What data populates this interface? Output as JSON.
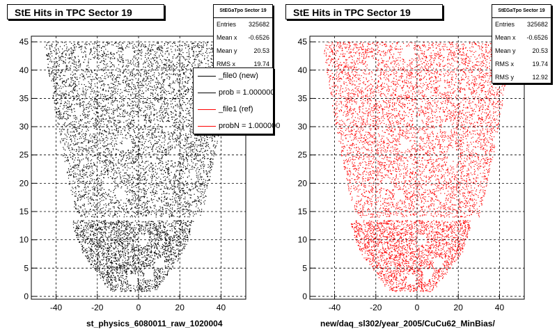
{
  "panels": [
    {
      "title": "StE Hits in TPC Sector 19",
      "stats": {
        "header": "StEGaTpo Sector 19",
        "rows": [
          {
            "label": "Entries",
            "value": "325682"
          },
          {
            "label": "Mean x",
            "value": "-0.6526"
          },
          {
            "label": "Mean y",
            "value": "20.53"
          },
          {
            "label": "RMS x",
            "value": "19.74"
          }
        ]
      },
      "footer": "st_physics_6080011_raw_1020004",
      "color": "#000000"
    },
    {
      "title": "StE Hits in TPC Sector 19",
      "stats": {
        "header": "StEGaTpo Sector 19",
        "rows": [
          {
            "label": "Entries",
            "value": "325682"
          },
          {
            "label": "Mean x",
            "value": "-0.6526"
          },
          {
            "label": "Mean y",
            "value": "20.53"
          },
          {
            "label": "RMS x",
            "value": "19.74"
          },
          {
            "label": "RMS y",
            "value": "12.92"
          }
        ]
      },
      "footer": "new/daq_sl302/year_2005/CuCu62_MinBias/",
      "color": "#ff0000"
    }
  ],
  "legend": [
    {
      "label": "_file0 (new)",
      "color": "#000000"
    },
    {
      "label": "prob = 1.000000",
      "color": "#000000"
    },
    {
      "label": "_file1 (ref)",
      "color": "#ff0000"
    },
    {
      "label": "probN = 1.000000",
      "color": "#ff0000"
    }
  ],
  "chart_data": [
    {
      "type": "scatter",
      "title": "StE Hits in TPC Sector 19",
      "xlim": [
        -52,
        52
      ],
      "ylim": [
        -0.5,
        46
      ],
      "xticks": [
        -40,
        -20,
        0,
        20,
        40
      ],
      "yticks": [
        0,
        5,
        10,
        15,
        20,
        25,
        30,
        35,
        40,
        45
      ],
      "grid": true,
      "legend_position": "top-right",
      "series": [
        {
          "name": "_file0 (new)",
          "color": "#000000",
          "rows": [
            1,
            45
          ],
          "half_width_at_row1": 11,
          "half_width_at_row45": 46,
          "gap_rows": [
            13.5,
            13.8
          ]
        }
      ]
    },
    {
      "type": "scatter",
      "title": "StE Hits in TPC Sector 19",
      "xlim": [
        -52,
        52
      ],
      "ylim": [
        -0.5,
        46
      ],
      "xticks": [
        -40,
        -20,
        0,
        20,
        40
      ],
      "yticks": [
        0,
        5,
        10,
        15,
        20,
        25,
        30,
        35,
        40,
        45
      ],
      "grid": true,
      "series": [
        {
          "name": "_file1 (ref)",
          "color": "#ff0000",
          "rows": [
            1,
            45
          ],
          "half_width_at_row1": 11,
          "half_width_at_row45": 46,
          "gap_rows": [
            13.5,
            13.8
          ]
        }
      ]
    }
  ]
}
